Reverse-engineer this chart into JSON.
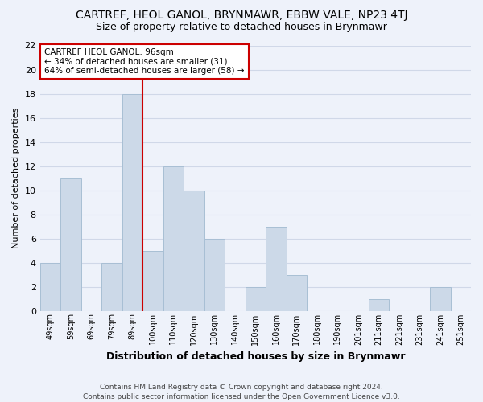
{
  "title": "CARTREF, HEOL GANOL, BRYNMAWR, EBBW VALE, NP23 4TJ",
  "subtitle": "Size of property relative to detached houses in Brynmawr",
  "xlabel": "Distribution of detached houses by size in Brynmawr",
  "ylabel": "Number of detached properties",
  "footer": "Contains HM Land Registry data © Crown copyright and database right 2024.\nContains public sector information licensed under the Open Government Licence v3.0.",
  "categories": [
    "49sqm",
    "59sqm",
    "69sqm",
    "79sqm",
    "89sqm",
    "100sqm",
    "110sqm",
    "120sqm",
    "130sqm",
    "140sqm",
    "150sqm",
    "160sqm",
    "170sqm",
    "180sqm",
    "190sqm",
    "201sqm",
    "211sqm",
    "221sqm",
    "231sqm",
    "241sqm",
    "251sqm"
  ],
  "values": [
    4,
    11,
    0,
    4,
    18,
    5,
    12,
    10,
    6,
    0,
    2,
    7,
    3,
    0,
    0,
    0,
    1,
    0,
    0,
    2,
    0
  ],
  "bar_color": "#ccd9e8",
  "bar_edge_color": "#a8bfd4",
  "ylim": [
    0,
    22
  ],
  "yticks": [
    0,
    2,
    4,
    6,
    8,
    10,
    12,
    14,
    16,
    18,
    20,
    22
  ],
  "annotation_text_line1": "CARTREF HEOL GANOL: 96sqm",
  "annotation_text_line2": "← 34% of detached houses are smaller (31)",
  "annotation_text_line3": "64% of semi-detached houses are larger (58) →",
  "annotation_box_color": "#ffffff",
  "annotation_box_edge_color": "#cc0000",
  "vline_color": "#cc0000",
  "vline_x_index": 4,
  "background_color": "#eef2fa",
  "grid_color": "#d0d8e8"
}
